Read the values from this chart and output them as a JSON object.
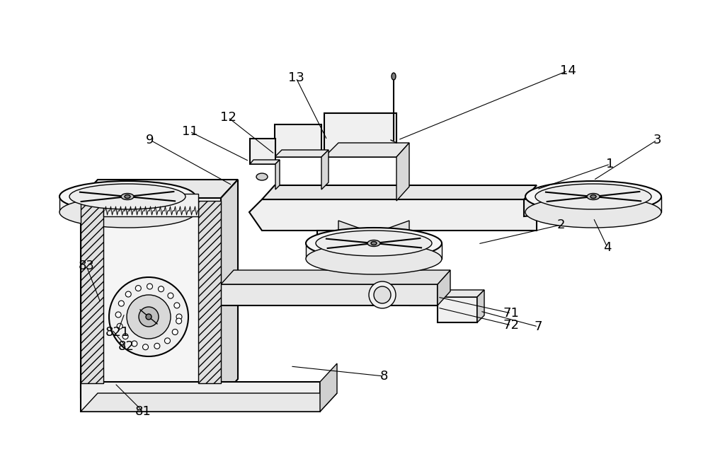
{
  "bg_color": "#ffffff",
  "line_color": "#000000",
  "annotations": [
    [
      "1",
      862,
      232,
      758,
      268
    ],
    [
      "2",
      792,
      318,
      675,
      345
    ],
    [
      "3",
      928,
      198,
      838,
      255
    ],
    [
      "4",
      858,
      350,
      838,
      308
    ],
    [
      "7",
      760,
      462,
      678,
      440
    ],
    [
      "71",
      722,
      443,
      618,
      420
    ],
    [
      "72",
      722,
      460,
      618,
      435
    ],
    [
      "8",
      542,
      532,
      410,
      518
    ],
    [
      "9",
      212,
      198,
      328,
      262
    ],
    [
      "11",
      268,
      186,
      352,
      228
    ],
    [
      "12",
      322,
      166,
      388,
      218
    ],
    [
      "13",
      418,
      110,
      462,
      198
    ],
    [
      "14",
      802,
      100,
      562,
      198
    ],
    [
      "81",
      202,
      582,
      162,
      542
    ],
    [
      "82",
      178,
      490,
      158,
      466
    ],
    [
      "821",
      166,
      470,
      176,
      443
    ],
    [
      "83",
      122,
      376,
      142,
      428
    ]
  ]
}
